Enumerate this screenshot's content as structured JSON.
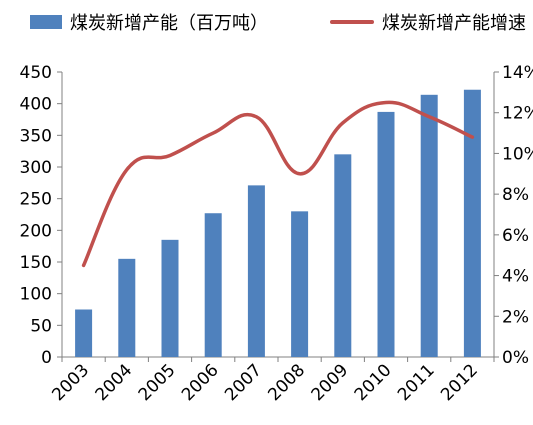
{
  "chart_data": {
    "type": "bar+line",
    "categories": [
      "2003",
      "2004",
      "2005",
      "2006",
      "2007",
      "2008",
      "2009",
      "2010",
      "2011",
      "2012"
    ],
    "series": [
      {
        "name": "煤炭新增产能（百万吨）",
        "type": "bar",
        "axis": "left",
        "values": [
          75,
          155,
          185,
          227,
          271,
          230,
          320,
          387,
          414,
          422
        ]
      },
      {
        "name": "煤炭新增产能增速",
        "type": "line",
        "axis": "right",
        "values": [
          4.5,
          9.2,
          9.9,
          11.0,
          11.8,
          9.0,
          11.5,
          12.5,
          11.8,
          10.8
        ]
      }
    ],
    "ylim_left": [
      0,
      450
    ],
    "yticks_left": [
      "0",
      "50",
      "100",
      "150",
      "200",
      "250",
      "300",
      "350",
      "400",
      "450"
    ],
    "ylim_right": [
      0,
      14
    ],
    "yticks_right": [
      "0%",
      "2%",
      "4%",
      "6%",
      "8%",
      "10%",
      "12%",
      "14%"
    ],
    "legend_position": "top",
    "grid": false
  },
  "colors": {
    "bar": "#4F81BD",
    "line": "#C0504D",
    "axis": "#808080"
  }
}
